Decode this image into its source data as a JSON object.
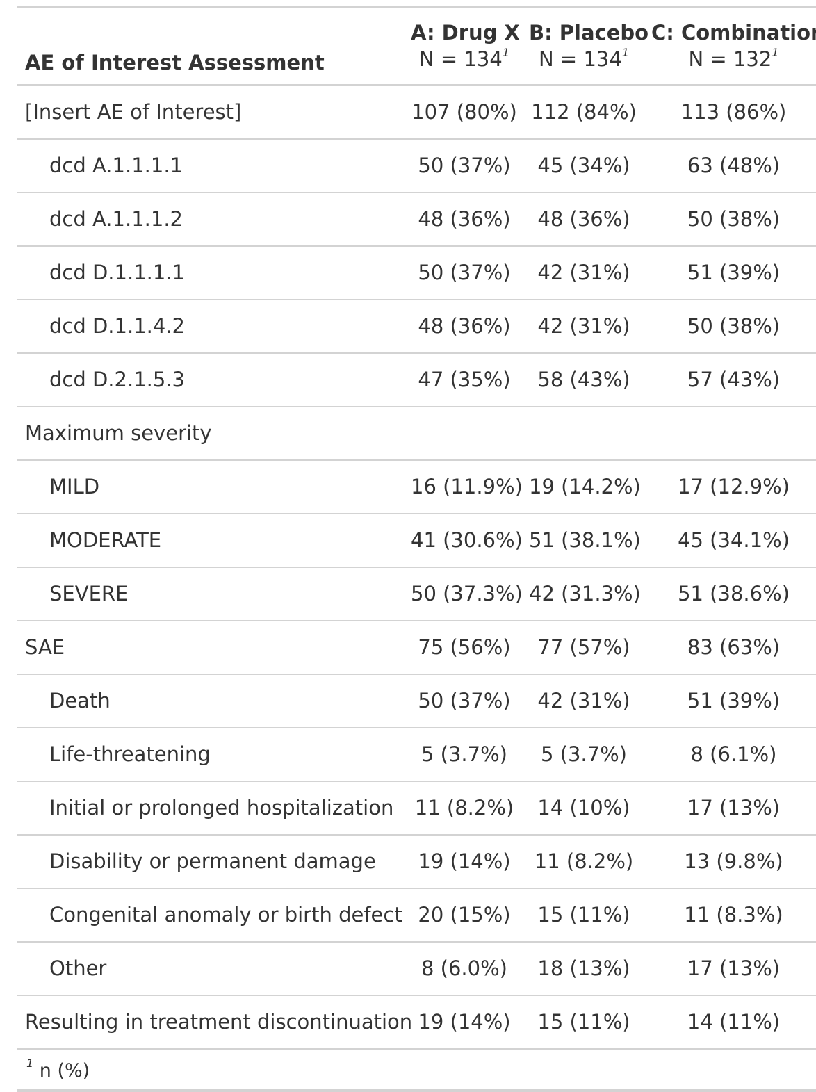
{
  "table": {
    "stub_header": "AE of Interest Assessment",
    "columns": [
      {
        "name": "A: Drug X",
        "n_label": "N = 134",
        "footnote_mark": "1"
      },
      {
        "name": "B: Placebo",
        "n_label": "N = 134",
        "footnote_mark": "1"
      },
      {
        "name": "C: Combination",
        "n_label": "N = 132",
        "footnote_mark": "1"
      }
    ],
    "rows": [
      {
        "label": "[Insert AE of Interest]",
        "indent": false,
        "values": [
          "107 (80%)",
          "112 (84%)",
          "113 (86%)"
        ]
      },
      {
        "label": "dcd A.1.1.1.1",
        "indent": true,
        "values": [
          "50 (37%)",
          "45 (34%)",
          "63 (48%)"
        ]
      },
      {
        "label": "dcd A.1.1.1.2",
        "indent": true,
        "values": [
          "48 (36%)",
          "48 (36%)",
          "50 (38%)"
        ]
      },
      {
        "label": "dcd D.1.1.1.1",
        "indent": true,
        "values": [
          "50 (37%)",
          "42 (31%)",
          "51 (39%)"
        ]
      },
      {
        "label": "dcd D.1.1.4.2",
        "indent": true,
        "values": [
          "48 (36%)",
          "42 (31%)",
          "50 (38%)"
        ]
      },
      {
        "label": "dcd D.2.1.5.3",
        "indent": true,
        "values": [
          "47 (35%)",
          "58 (43%)",
          "57 (43%)"
        ]
      },
      {
        "label": "Maximum severity",
        "indent": false,
        "values": [
          "",
          "",
          ""
        ]
      },
      {
        "label": "MILD",
        "indent": true,
        "values": [
          "16 (11.9%)",
          "19 (14.2%)",
          "17 (12.9%)"
        ]
      },
      {
        "label": "MODERATE",
        "indent": true,
        "values": [
          "41 (30.6%)",
          "51 (38.1%)",
          "45 (34.1%)"
        ]
      },
      {
        "label": "SEVERE",
        "indent": true,
        "values": [
          "50 (37.3%)",
          "42 (31.3%)",
          "51 (38.6%)"
        ]
      },
      {
        "label": "SAE",
        "indent": false,
        "values": [
          "75 (56%)",
          "77 (57%)",
          "83 (63%)"
        ]
      },
      {
        "label": "Death",
        "indent": true,
        "values": [
          "50 (37%)",
          "42 (31%)",
          "51 (39%)"
        ]
      },
      {
        "label": "Life-threatening",
        "indent": true,
        "values": [
          "5 (3.7%)",
          "5 (3.7%)",
          "8 (6.1%)"
        ]
      },
      {
        "label": "Initial or prolonged hospitalization",
        "indent": true,
        "values": [
          "11 (8.2%)",
          "14 (10%)",
          "17 (13%)"
        ]
      },
      {
        "label": "Disability or permanent damage",
        "indent": true,
        "values": [
          "19 (14%)",
          "11 (8.2%)",
          "13 (9.8%)"
        ]
      },
      {
        "label": "Congenital anomaly or birth defect",
        "indent": true,
        "values": [
          "20 (15%)",
          "15 (11%)",
          "11 (8.3%)"
        ]
      },
      {
        "label": "Other",
        "indent": true,
        "values": [
          "8 (6.0%)",
          "18 (13%)",
          "17 (13%)"
        ]
      },
      {
        "label": "Resulting in treatment discontinuation",
        "indent": false,
        "values": [
          "19 (14%)",
          "15 (11%)",
          "14 (11%)"
        ]
      }
    ],
    "footnote": {
      "mark": "1",
      "text": "n (%)"
    }
  }
}
